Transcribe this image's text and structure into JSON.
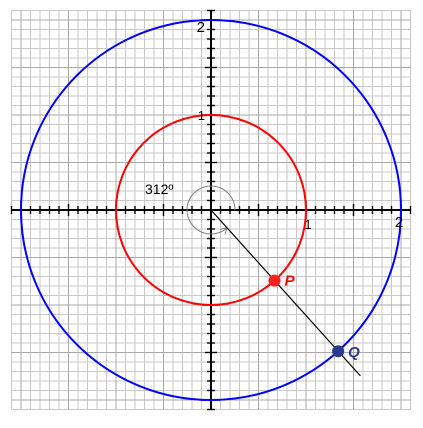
{
  "angle_label": "312º",
  "axis_labels": {
    "x_one": "1",
    "x_two": "2",
    "y_one": "1",
    "y_two": "2"
  },
  "points": {
    "p_label": "P",
    "q_label": "Q"
  },
  "diagram_data": {
    "angle_degrees": 312,
    "inner_radius": 1,
    "outer_radius": 2,
    "axis_range": [
      -2.1,
      2.1
    ],
    "grid_minor_step": 0.1,
    "grid_major_step": 0.5
  },
  "colors": {
    "grid_minor": "#c8c8c8",
    "grid_major": "#a8a8a8",
    "axis": "#000000",
    "inner_circle": "#ff0000",
    "outer_circle": "#0000ff",
    "point_p": "#ff2020",
    "point_q": "#2a3a8c",
    "label_p": "#ff0000",
    "label_q": "#2a3a8c",
    "ray": "#000000",
    "angle_arc": "#808080"
  }
}
